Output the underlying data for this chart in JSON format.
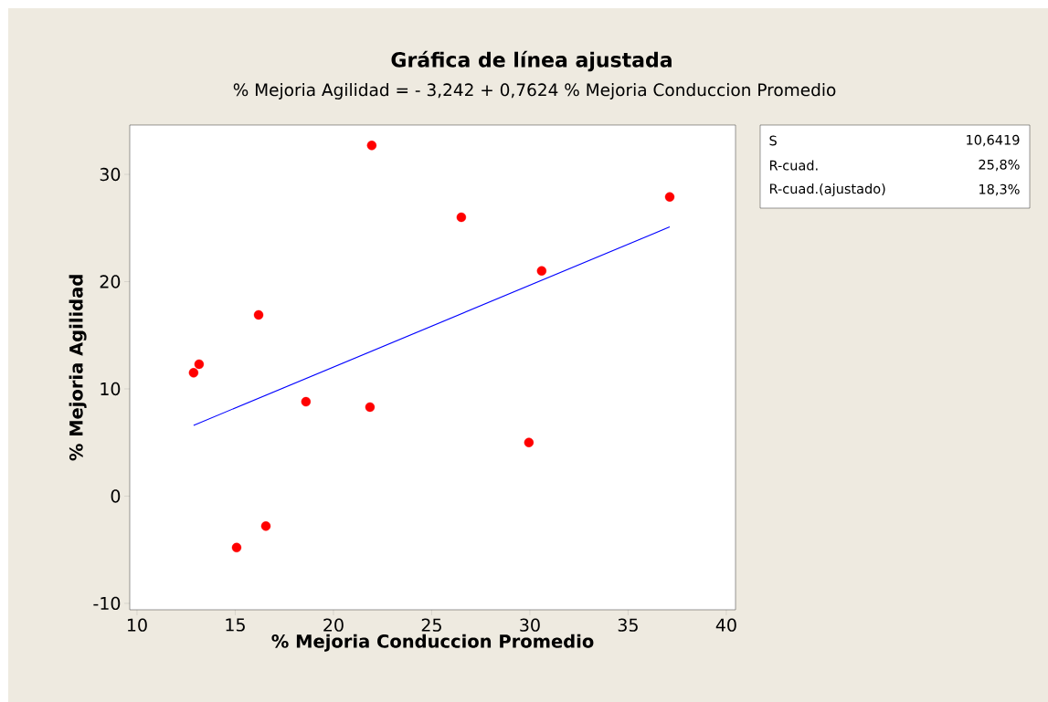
{
  "chart_data": {
    "type": "scatter",
    "title": "Gráfica de línea ajustada",
    "subtitle": "% Mejoria Agilidad =  - 3,242 + 0,7624 % Mejoria Conduccion Promedio",
    "xlabel": "% Mejoria Conduccion Promedio",
    "ylabel": "% Mejoria Agilidad",
    "xlim": [
      9.63,
      40.47
    ],
    "ylim": [
      -10.6,
      34.6
    ],
    "xticks": [
      10,
      15,
      20,
      25,
      30,
      35,
      40
    ],
    "yticks": [
      -10,
      0,
      10,
      20,
      30
    ],
    "grid": false,
    "series": [
      {
        "color": "#ff0000",
        "marker": "circle",
        "x": [
          12.88,
          13.16,
          15.07,
          16.19,
          16.56,
          18.6,
          21.95,
          21.86,
          26.51,
          29.95,
          30.6,
          37.12
        ],
        "values": [
          11.5,
          12.3,
          -4.8,
          16.9,
          -2.8,
          8.8,
          32.7,
          8.3,
          26.0,
          5.0,
          21.0,
          27.9
        ]
      },
      {
        "type": "line",
        "color": "#0000ff",
        "marker": "none",
        "line_style": "solid",
        "x": [
          12.88,
          37.12
        ],
        "values": [
          6.6,
          25.1
        ]
      }
    ],
    "annotations": [
      "S",
      "10,6419",
      "R-cuad.",
      "25,8%",
      "R-cuad.(ajustado)",
      "18,3%"
    ]
  }
}
